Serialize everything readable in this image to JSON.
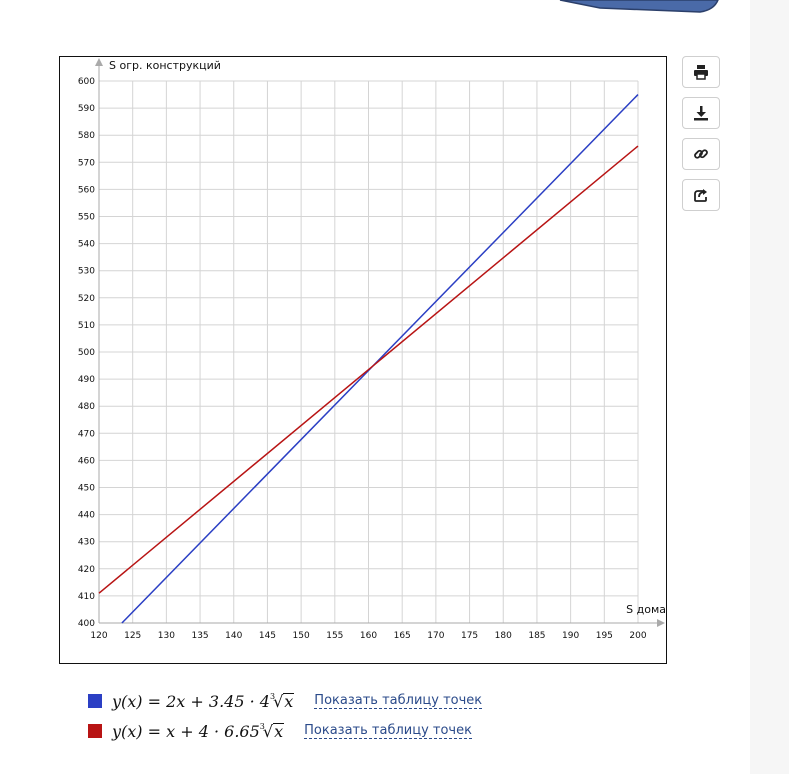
{
  "chart_data": {
    "type": "line",
    "xlabel": "S дома",
    "ylabel": "S огр. конструкций",
    "xlim": [
      120,
      200
    ],
    "ylim": [
      400,
      600
    ],
    "xticks": [
      120,
      125,
      130,
      135,
      140,
      145,
      150,
      155,
      160,
      165,
      170,
      175,
      180,
      185,
      190,
      195,
      200
    ],
    "yticks": [
      400,
      410,
      420,
      430,
      440,
      450,
      460,
      470,
      480,
      490,
      500,
      510,
      520,
      530,
      540,
      550,
      560,
      570,
      580,
      590,
      600
    ],
    "grid": true,
    "series": [
      {
        "color": "#2b3fc4",
        "x": [
          123.4,
          200
        ],
        "y": [
          400,
          595
        ]
      },
      {
        "color": "#b81414",
        "x": [
          120,
          200
        ],
        "y": [
          411,
          576
        ]
      }
    ]
  },
  "legend": [
    {
      "color": "#2b3fc4",
      "lhs": "y(x) = 2x + 3.45 · 4",
      "root_index": "3",
      "radicand": "x",
      "link": "Показать таблицу точек"
    },
    {
      "color": "#b81414",
      "lhs": "y(x) = x + 4 · 6.65",
      "root_index": "3",
      "radicand": "x",
      "link": "Показать таблицу точек"
    }
  ],
  "tools": [
    "print-icon",
    "download-icon",
    "link-icon",
    "share-icon"
  ]
}
